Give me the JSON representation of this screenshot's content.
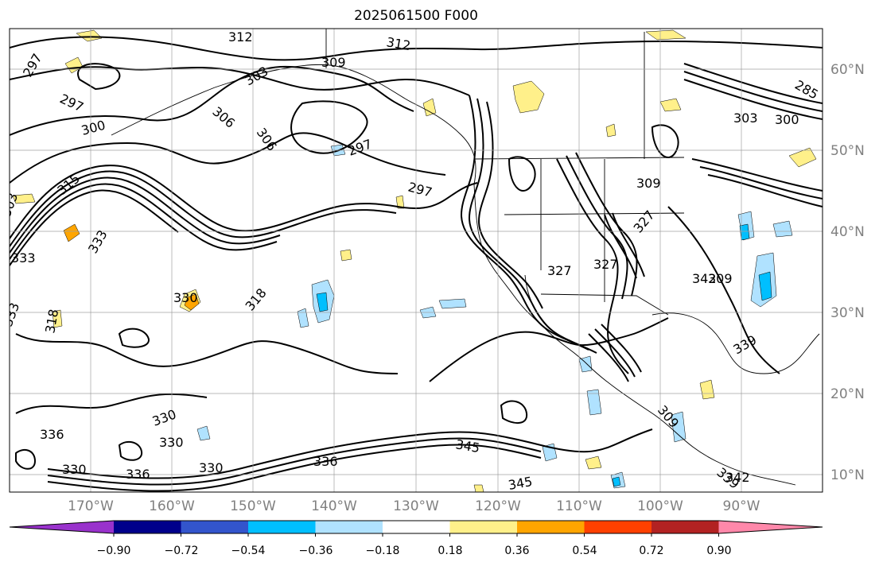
{
  "title": "2025061500 F000",
  "lon_labels": [
    "170°W",
    "160°W",
    "150°W",
    "140°W",
    "130°W",
    "120°W",
    "110°W",
    "100°W",
    "90°W"
  ],
  "lat_labels": [
    "60°N",
    "50°N",
    "40°N",
    "30°N",
    "20°N",
    "10°N"
  ],
  "contour_labels": [
    "312",
    "312",
    "309",
    "309",
    "303",
    "306",
    "306",
    "297",
    "297",
    "297",
    "297",
    "300",
    "285",
    "303",
    "300",
    "303",
    "315",
    "333",
    "327",
    "339",
    "345",
    "327",
    "327",
    "318",
    "330",
    "336",
    "333",
    "333",
    "330",
    "330",
    "336",
    "330",
    "330",
    "336",
    "345",
    "339",
    "342",
    "342",
    "309",
    "309",
    "318"
  ],
  "colorbar": {
    "ticks": [
      "−0.90",
      "−0.72",
      "−0.54",
      "−0.36",
      "−0.18",
      "0.18",
      "0.36",
      "0.54",
      "0.72",
      "0.90"
    ],
    "colors": [
      "#9932cc",
      "#00008b",
      "#3355cc",
      "#00bfff",
      "#b0e2ff",
      "#ffffff",
      "#fff08a",
      "#ffa500",
      "#ff4000",
      "#b22222",
      "#ff88aa"
    ]
  },
  "colors": {
    "line": "#000000",
    "coast": "#000000",
    "grid": "#a0a0a0",
    "label": "#808080"
  }
}
